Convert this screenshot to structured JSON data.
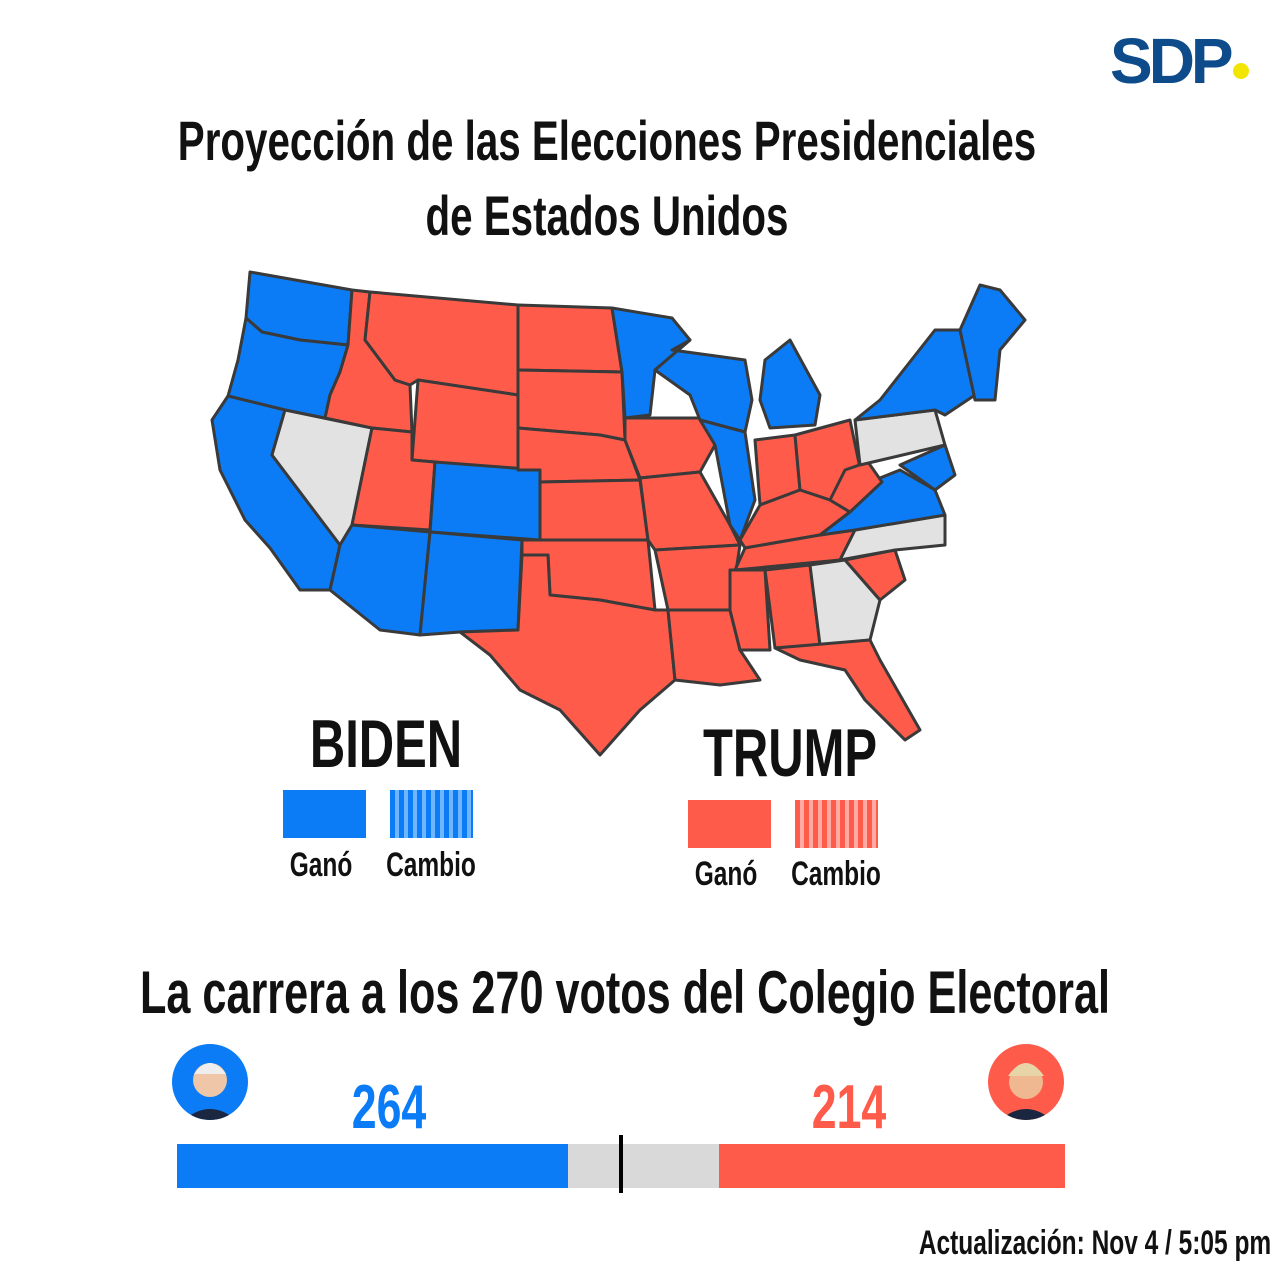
{
  "logo": {
    "text": "SDP",
    "dot_color": "#f2e600",
    "color": "#0d4b8a"
  },
  "title": {
    "line1": "Proyección de las Elecciones Presidenciales",
    "line2": "de Estados Unidos"
  },
  "colors": {
    "biden": "#0b7cf5",
    "trump": "#ff5b4b",
    "undecided": "#e2e2e2",
    "bar_gray": "#d9d9d9"
  },
  "map": {
    "biden_states": [
      "WA",
      "OR",
      "CA",
      "AZ",
      "CO",
      "NM",
      "MN",
      "WI",
      "MI",
      "IL",
      "VA",
      "MD-DE-NJ",
      "NY",
      "New England"
    ],
    "trump_states": [
      "ID",
      "MT",
      "WY",
      "UT",
      "ND",
      "SD",
      "NE",
      "KS",
      "OK",
      "TX",
      "IA",
      "MO",
      "AR",
      "LA",
      "IN",
      "OH",
      "KY",
      "TN",
      "MS",
      "AL",
      "FL",
      "SC",
      "WV"
    ],
    "undecided_states": [
      "NV",
      "PA",
      "NC",
      "GA"
    ]
  },
  "legend": {
    "biden": {
      "name": "BIDEN",
      "won": "Ganó",
      "flip": "Cambio"
    },
    "trump": {
      "name": "TRUMP",
      "won": "Ganó",
      "flip": "Cambio"
    }
  },
  "race": {
    "title": "La carrera a los 270 votos del Colegio Electoral",
    "biden_votes": "264",
    "trump_votes": "214",
    "threshold": 270,
    "total": 538
  },
  "updated": "Actualización: Nov 4 / 5:05 pm"
}
